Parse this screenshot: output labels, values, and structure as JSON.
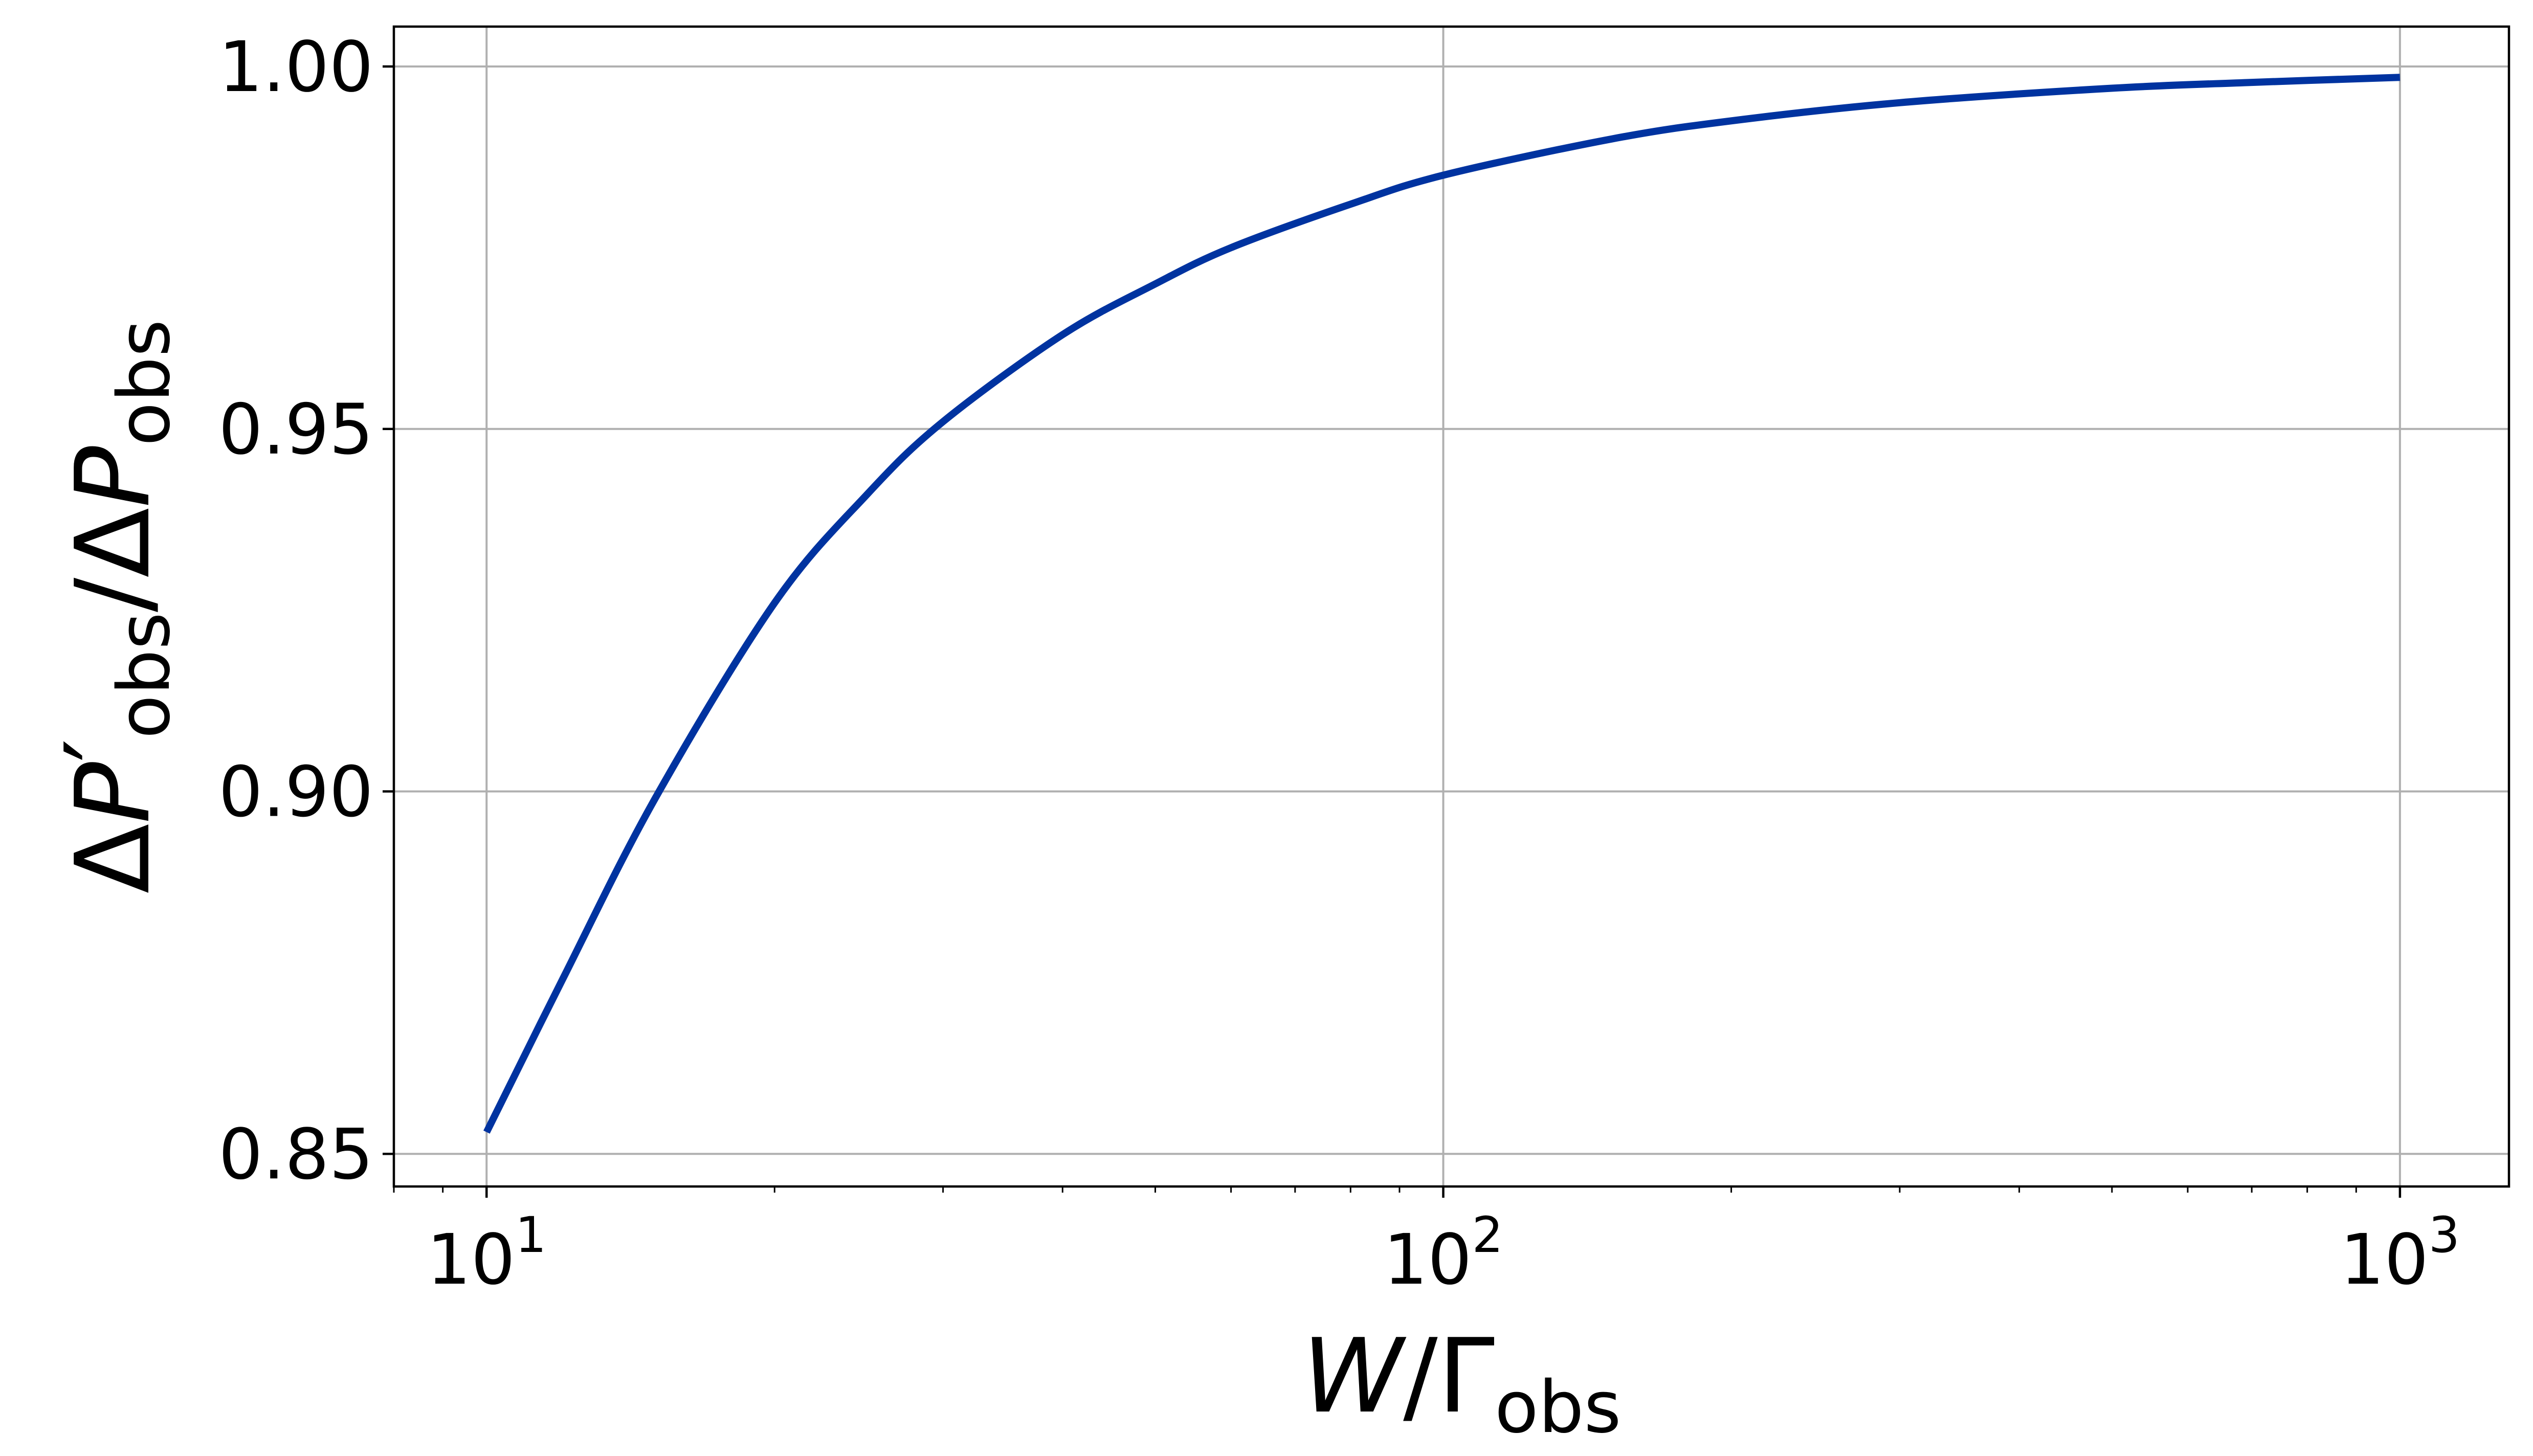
{
  "chart_data": {
    "type": "line",
    "title": "",
    "xlabel": {
      "main": "W",
      "slash": "/",
      "gamma": "Γ",
      "subscript": "obs"
    },
    "ylabel": {
      "delta1": "Δ",
      "p1": "P",
      "prime": "′",
      "sub1": "obs",
      "slash": "/",
      "delta2": "Δ",
      "p2": "P",
      "sub2": "obs"
    },
    "xscale": "log",
    "xlim": [
      8.0,
      1300
    ],
    "ylim": [
      0.8455,
      1.0055
    ],
    "grid": true,
    "x_ticks": [
      {
        "value": 10,
        "base": "10",
        "exp": "1"
      },
      {
        "value": 100,
        "base": "10",
        "exp": "2"
      },
      {
        "value": 1000,
        "base": "10",
        "exp": "3"
      }
    ],
    "y_ticks": [
      {
        "value": 0.85,
        "label": "0.85"
      },
      {
        "value": 0.9,
        "label": "0.90"
      },
      {
        "value": 0.95,
        "label": "0.95"
      },
      {
        "value": 1.0,
        "label": "1.00"
      }
    ],
    "series": [
      {
        "color": "#0033a0",
        "x": [
          10,
          12,
          15,
          20,
          25,
          30,
          40,
          50,
          60,
          80,
          100,
          150,
          200,
          300,
          500,
          700,
          1000
        ],
        "y": [
          0.853,
          0.874,
          0.899,
          0.926,
          0.941,
          0.951,
          0.963,
          0.97,
          0.975,
          0.981,
          0.985,
          0.99,
          0.9925,
          0.995,
          0.997,
          0.9978,
          0.9985
        ]
      }
    ]
  }
}
